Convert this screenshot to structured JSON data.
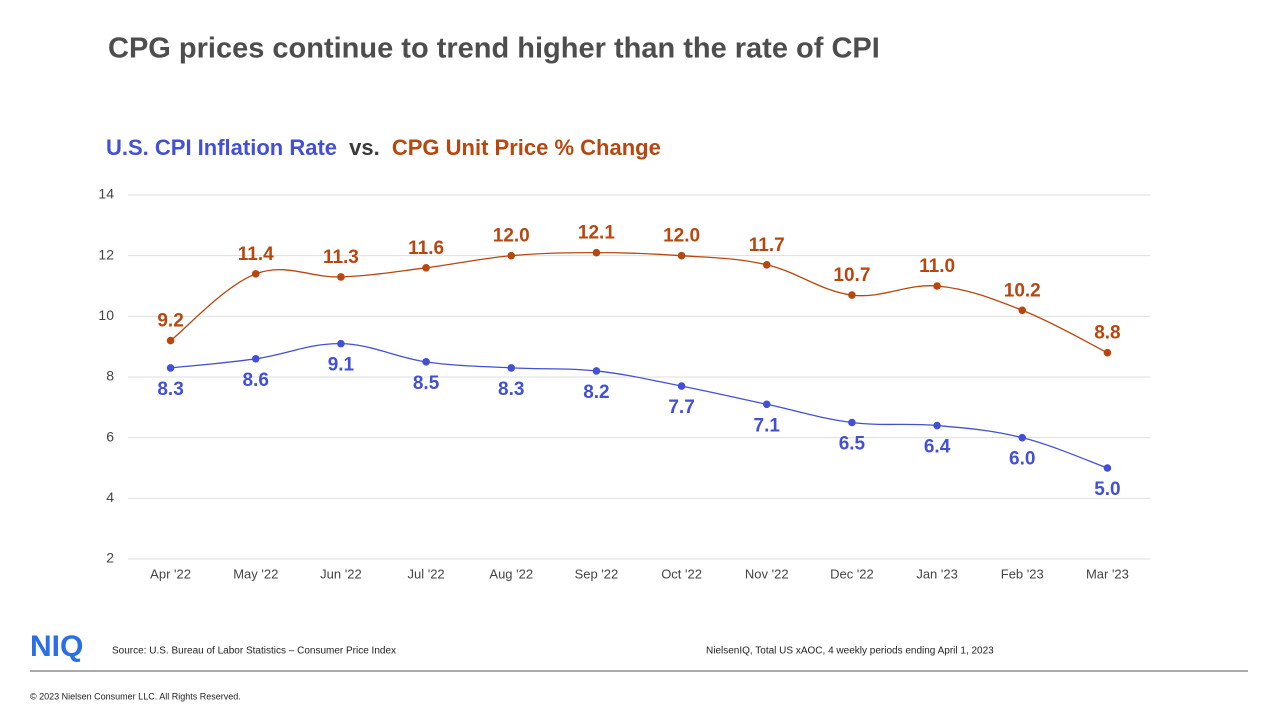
{
  "title": "CPG prices continue to trend higher than the rate of CPI",
  "chart_data": {
    "type": "line",
    "subtitle_connector": "vs.",
    "categories": [
      "Apr '22",
      "May '22",
      "Jun '22",
      "Jul '22",
      "Aug '22",
      "Sep '22",
      "Oct '22",
      "Nov '22",
      "Dec '22",
      "Jan '23",
      "Feb '23",
      "Mar '23"
    ],
    "series": [
      {
        "name": "U.S. CPI Inflation Rate",
        "color": "#4350d6",
        "values": [
          8.3,
          8.6,
          9.1,
          8.5,
          8.3,
          8.2,
          7.7,
          7.1,
          6.5,
          6.4,
          6.0,
          5.0
        ],
        "value_labels": [
          "8.3",
          "8.6",
          "9.1",
          "8.5",
          "8.3",
          "8.2",
          "7.7",
          "7.1",
          "6.5",
          "6.4",
          "6.0",
          "5.0"
        ]
      },
      {
        "name": "CPG Unit Price % Change",
        "color": "#b8470f",
        "values": [
          9.2,
          11.4,
          11.3,
          11.6,
          12.0,
          12.1,
          12.0,
          11.7,
          10.7,
          11.0,
          10.2,
          8.8
        ],
        "value_labels": [
          "9.2",
          "11.4",
          "11.3",
          "11.6",
          "12.0",
          "12.1",
          "12.0",
          "11.7",
          "10.7",
          "11.0",
          "10.2",
          "8.8"
        ]
      }
    ],
    "ylim": [
      2,
      14
    ],
    "yticks": [
      2,
      4,
      6,
      8,
      10,
      12,
      14
    ],
    "grid": true
  },
  "footer": {
    "logo": "NIQ",
    "source": "Source: U.S. Bureau of Labor Statistics – Consumer Price Index",
    "note": "NielsenIQ, Total US xAOC,  4 weekly periods ending April 1,  2023",
    "copyright": "© 2023 Nielsen Consumer LLC. All Rights Reserved."
  }
}
